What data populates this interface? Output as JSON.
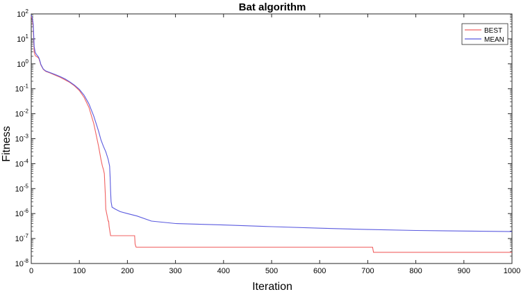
{
  "chart_data": {
    "type": "line",
    "title": "Bat algorithm",
    "xlabel": "Iteration",
    "ylabel": "Fitness",
    "xlim": [
      0,
      1000
    ],
    "ylim": [
      1e-08,
      100
    ],
    "yscale": "log",
    "grid": false,
    "legend_position": "top-right",
    "x_ticks": [
      "0",
      "100",
      "200",
      "300",
      "400",
      "500",
      "600",
      "700",
      "800",
      "900",
      "1000"
    ],
    "y_tick_exponents": [
      "2",
      "1",
      "0",
      "-1",
      "-2",
      "-3",
      "-4",
      "-5",
      "-6",
      "-7",
      "-8"
    ],
    "y_tick_base": "10",
    "series": [
      {
        "name": "BEST",
        "color": "#f06060",
        "points": [
          [
            0,
            80
          ],
          [
            2,
            60
          ],
          [
            4,
            30
          ],
          [
            5,
            10
          ],
          [
            6,
            3
          ],
          [
            8,
            2.2
          ],
          [
            10,
            2.0
          ],
          [
            12,
            1.9
          ],
          [
            14,
            1.8
          ],
          [
            16,
            1.6
          ],
          [
            18,
            1.2
          ],
          [
            20,
            0.9
          ],
          [
            25,
            0.6
          ],
          [
            30,
            0.5
          ],
          [
            40,
            0.42
          ],
          [
            50,
            0.35
          ],
          [
            60,
            0.29
          ],
          [
            70,
            0.23
          ],
          [
            80,
            0.18
          ],
          [
            90,
            0.13
          ],
          [
            100,
            0.085
          ],
          [
            110,
            0.045
          ],
          [
            120,
            0.018
          ],
          [
            130,
            0.004
          ],
          [
            140,
            0.0005
          ],
          [
            145,
            0.00015
          ],
          [
            148,
            8e-05
          ],
          [
            150,
            6e-05
          ],
          [
            152,
            4e-05
          ],
          [
            153,
            1.5e-05
          ],
          [
            154,
            6e-06
          ],
          [
            155,
            1.5e-06
          ],
          [
            158,
            8e-07
          ],
          [
            160,
            5e-07
          ],
          [
            161,
            5e-07
          ],
          [
            162,
            3e-07
          ],
          [
            165,
            1.3e-07
          ],
          [
            215,
            1.3e-07
          ],
          [
            216,
            6e-08
          ],
          [
            218,
            4.5e-08
          ],
          [
            710,
            4.5e-08
          ],
          [
            712,
            2.8e-08
          ],
          [
            1000,
            2.8e-08
          ]
        ]
      },
      {
        "name": "MEAN",
        "color": "#5a5adf",
        "points": [
          [
            0,
            90
          ],
          [
            2,
            70
          ],
          [
            4,
            40
          ],
          [
            5,
            15
          ],
          [
            6,
            5
          ],
          [
            8,
            3
          ],
          [
            10,
            2.5
          ],
          [
            12,
            2.2
          ],
          [
            14,
            2.0
          ],
          [
            16,
            1.7
          ],
          [
            18,
            1.3
          ],
          [
            20,
            0.95
          ],
          [
            25,
            0.62
          ],
          [
            30,
            0.52
          ],
          [
            40,
            0.44
          ],
          [
            50,
            0.37
          ],
          [
            60,
            0.31
          ],
          [
            70,
            0.25
          ],
          [
            80,
            0.19
          ],
          [
            90,
            0.14
          ],
          [
            100,
            0.095
          ],
          [
            110,
            0.055
          ],
          [
            120,
            0.025
          ],
          [
            130,
            0.008
          ],
          [
            140,
            0.002
          ],
          [
            145,
            0.0009
          ],
          [
            150,
            0.0005
          ],
          [
            155,
            0.0003
          ],
          [
            160,
            0.00015
          ],
          [
            163,
            8e-05
          ],
          [
            164,
            3e-05
          ],
          [
            165,
            8e-06
          ],
          [
            166,
            3e-06
          ],
          [
            168,
            1.8e-06
          ],
          [
            175,
            1.5e-06
          ],
          [
            185,
            1.2e-06
          ],
          [
            200,
            1e-06
          ],
          [
            220,
            8e-07
          ],
          [
            250,
            5e-07
          ],
          [
            300,
            4e-07
          ],
          [
            400,
            3.5e-07
          ],
          [
            500,
            3e-07
          ],
          [
            600,
            2.6e-07
          ],
          [
            700,
            2.3e-07
          ],
          [
            800,
            2.1e-07
          ],
          [
            900,
            2e-07
          ],
          [
            1000,
            1.9e-07
          ]
        ]
      }
    ]
  }
}
